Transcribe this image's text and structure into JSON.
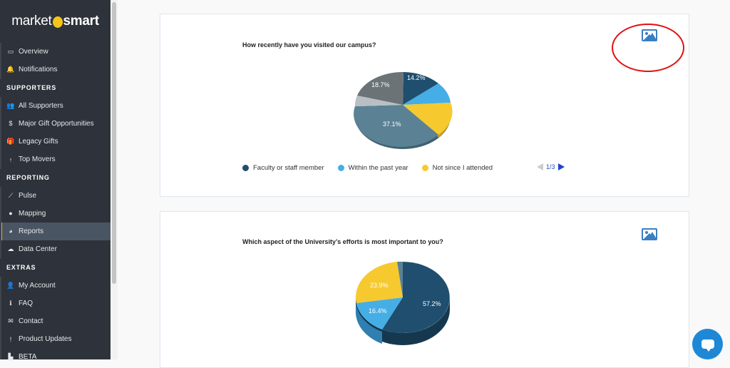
{
  "sidebar": {
    "logo": {
      "part1": "market",
      "part2": "smart"
    },
    "items": [
      {
        "type": "item",
        "label": "Overview",
        "icon": "monitor-icon",
        "glyph": "▭"
      },
      {
        "type": "item",
        "label": "Notifications",
        "icon": "bell-icon",
        "glyph": "🔔"
      },
      {
        "type": "section",
        "label": "SUPPORTERS"
      },
      {
        "type": "item",
        "label": "All Supporters",
        "icon": "users-icon",
        "glyph": "👥"
      },
      {
        "type": "item",
        "label": "Major Gift Opportunities",
        "icon": "dollar-icon",
        "glyph": "$"
      },
      {
        "type": "item",
        "label": "Legacy Gifts",
        "icon": "gift-icon",
        "glyph": "🎁"
      },
      {
        "type": "item",
        "label": "Top Movers",
        "icon": "arrow-up-icon",
        "glyph": "↑"
      },
      {
        "type": "section",
        "label": "REPORTING"
      },
      {
        "type": "item",
        "label": "Pulse",
        "icon": "line-chart-icon",
        "glyph": "⟋"
      },
      {
        "type": "item",
        "label": "Mapping",
        "icon": "map-pin-icon",
        "glyph": "●"
      },
      {
        "type": "item",
        "label": "Reports",
        "icon": "pie-chart-icon",
        "glyph": "◕",
        "active": true
      },
      {
        "type": "item",
        "label": "Data Center",
        "icon": "cloud-upload-icon",
        "glyph": "☁"
      },
      {
        "type": "section",
        "label": "EXTRAS"
      },
      {
        "type": "item",
        "label": "My Account",
        "icon": "user-icon",
        "glyph": "👤"
      },
      {
        "type": "item",
        "label": "FAQ",
        "icon": "info-icon",
        "glyph": "ℹ"
      },
      {
        "type": "item",
        "label": "Contact",
        "icon": "envelope-icon",
        "glyph": "✉"
      },
      {
        "type": "item",
        "label": "Product Updates",
        "icon": "exclamation-icon",
        "glyph": "!"
      },
      {
        "type": "item",
        "label": "BETA",
        "icon": "industry-icon",
        "glyph": "▙"
      }
    ]
  },
  "cards": [
    {
      "question": "How recently have you visited our campus?",
      "export_icon": "image-icon",
      "pie_labels": [
        "14.2%",
        "18.7%",
        "37.1%"
      ],
      "legend": [
        {
          "label": "Faculty or staff member",
          "color": "#1f4e6e"
        },
        {
          "label": "Within the past year",
          "color": "#45aee6"
        },
        {
          "label": "Not since I attended",
          "color": "#f6c92f"
        }
      ],
      "pager": "1/3"
    },
    {
      "question": "Which aspect of the University’s efforts is most important to you?",
      "export_icon": "image-icon",
      "pie_labels": [
        "57.2%",
        "16.4%",
        "23.9%"
      ]
    }
  ],
  "chart_data": [
    {
      "type": "pie",
      "title": "How recently have you visited our campus?",
      "categories": [
        "Faculty or staff member",
        "Within the past year",
        "Not since I attended",
        "(slice 4)",
        "(slice 5)",
        "(slice 6)"
      ],
      "values": [
        14.2,
        12.0,
        14.0,
        37.1,
        4.0,
        18.7
      ],
      "colors": [
        "#1f4e6e",
        "#45aee6",
        "#f6c92f",
        "#5a8294",
        "#b9bfc4",
        "#6c7377"
      ],
      "legend_position": "bottom",
      "legend_page": "1/3"
    },
    {
      "type": "pie",
      "title": "Which aspect of the University’s efforts is most important to you?",
      "categories": [
        "(slice 1)",
        "(slice 2)",
        "(slice 3)",
        "(slice 4)"
      ],
      "values": [
        57.2,
        16.4,
        23.9,
        2.5
      ],
      "colors": [
        "#1f4e6e",
        "#45aee6",
        "#f6c92f",
        "#5a8294"
      ]
    }
  ],
  "annotation": {
    "shape": "ellipse",
    "color": "#e01010",
    "target": "export-image-button-1"
  },
  "chat": {
    "icon": "chat-bubble-icon"
  }
}
